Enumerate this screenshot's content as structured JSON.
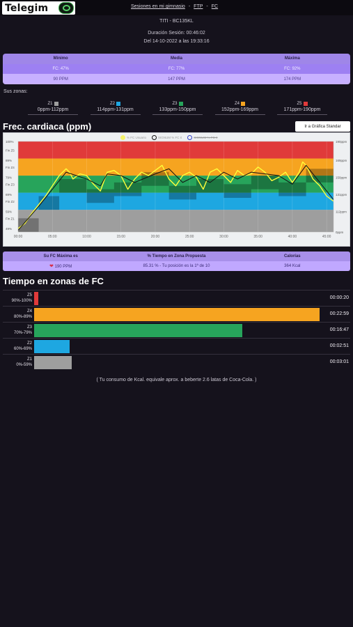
{
  "header": {
    "logo_text": "Telegim",
    "breadcrumb": [
      "Sesiones en mi gimnasio",
      "FTP",
      "FC"
    ],
    "separator": "-"
  },
  "session": {
    "user": "TITI - BC135KL",
    "duration": "Duración Sesión: 00:46:02",
    "date": "Del 14-10-2022 a las 19:33:16"
  },
  "stats": {
    "headers": [
      "Mínimo",
      "Media",
      "Máxima"
    ],
    "fc_pct": [
      "FC: 47%",
      "FC: 77%",
      "FC: 92%"
    ],
    "ppm": [
      "90 PPM",
      "147 PPM",
      "174 PPM"
    ]
  },
  "zones_label": "Sus zonas:",
  "zones": [
    {
      "name": "Z1",
      "range": "0ppm-112ppm",
      "color": "#9e9e9e"
    },
    {
      "name": "Z2",
      "range": "114ppm-131ppm",
      "color": "#1ea7e1"
    },
    {
      "name": "Z3",
      "range": "133ppm-150ppm",
      "color": "#27a45b"
    },
    {
      "name": "Z4",
      "range": "152ppm-169ppm",
      "color": "#f6a420"
    },
    {
      "name": "Z5",
      "range": "171ppm-190ppm",
      "color": "#e03a3a"
    }
  ],
  "chart_title": "Frec. cardiaca (ppm)",
  "standard_button": "Ir a Gráfica Standar",
  "chart_data": {
    "type": "line",
    "legend": [
      "% FC Usuario",
      "SIGNUM % FC ¢",
      "SIGNUM % FC ¢"
    ],
    "y_left_ticks": [
      "100%",
      "Fin Z5",
      "89%",
      "Fin Z4",
      "79%",
      "Fin Z3",
      "69%",
      "Fin Z2",
      "59%",
      "Fin Z1",
      "49%"
    ],
    "y_right_ticks": [
      "190ppm",
      "169ppm",
      "150ppm",
      "131ppm",
      "112ppm",
      "0ppm"
    ],
    "x_ticks": [
      "00:00",
      "05:00",
      "10:00",
      "15:00",
      "20:00",
      "25:00",
      "30:00",
      "35:00",
      "40:00",
      "45:00"
    ],
    "xlim": [
      0,
      46
    ],
    "ylim": [
      47,
      100
    ],
    "zone_bands": [
      {
        "zone": "Z1",
        "from": 47,
        "to": 60,
        "color": "#9e9e9e"
      },
      {
        "zone": "Z2",
        "from": 60,
        "to": 70,
        "color": "#1ea7e1"
      },
      {
        "zone": "Z3",
        "from": 70,
        "to": 80,
        "color": "#27a45b"
      },
      {
        "zone": "Z4",
        "from": 80,
        "to": 90,
        "color": "#f6a420"
      },
      {
        "zone": "Z5",
        "from": 90,
        "to": 100,
        "color": "#e03a3a"
      }
    ],
    "series": [
      {
        "name": "% FC Usuario",
        "color": "#ffff3a",
        "x": [
          0,
          1,
          2,
          3,
          4,
          5,
          6,
          7,
          7.5,
          8,
          9,
          10,
          11,
          12,
          13,
          14,
          15,
          16,
          17,
          18,
          19,
          20,
          21,
          22,
          23,
          24,
          25,
          26,
          27,
          28,
          29,
          30,
          31,
          32,
          33,
          34,
          35,
          36,
          37,
          38,
          39,
          40,
          41,
          41.5,
          42,
          43,
          44,
          45,
          46
        ],
        "y": [
          49,
          52,
          58,
          63,
          68,
          74,
          80,
          84,
          82,
          78,
          81,
          80,
          75,
          71,
          82,
          83,
          80,
          72,
          78,
          82,
          80,
          83,
          86,
          78,
          74,
          80,
          82,
          79,
          72,
          82,
          84,
          80,
          76,
          83,
          80,
          81,
          85,
          82,
          77,
          79,
          82,
          76,
          82,
          88,
          86,
          78,
          74,
          68,
          65
        ]
      },
      {
        "name": "SIGNUM % FC",
        "color": "#111111",
        "x": [
          0,
          3,
          7,
          10,
          12,
          13,
          15,
          17,
          20,
          22,
          24,
          26,
          28,
          30,
          32,
          34,
          36,
          38,
          40,
          42,
          44,
          46
        ],
        "y": [
          48,
          62,
          82,
          78,
          74,
          81,
          80,
          76,
          81,
          84,
          76,
          80,
          76,
          82,
          78,
          82,
          81,
          80,
          75,
          86,
          76,
          66
        ]
      }
    ]
  },
  "summary": {
    "headers": [
      "Su FC Máxima es",
      "% Tiempo en Zona Propuesta",
      "Calorías"
    ],
    "values": [
      "190 PPM",
      "85.31 % - Tu posición es la 1ª de 10",
      "364 Kcal"
    ]
  },
  "time_title": "Tiempo en zonas de FC",
  "time_zones": [
    {
      "zone": "Z5",
      "range": "90%-100%",
      "time": "00:00:20",
      "minutes": 0.33,
      "color": "#e03a3a"
    },
    {
      "zone": "Z4",
      "range": "80%-89%",
      "time": "00:22:59",
      "minutes": 22.98,
      "color": "#f6a420"
    },
    {
      "zone": "Z3",
      "range": "70%-79%",
      "time": "00:16:47",
      "minutes": 16.78,
      "color": "#27a45b"
    },
    {
      "zone": "Z2",
      "range": "60%-69%",
      "time": "00:02:51",
      "minutes": 2.85,
      "color": "#1ea7e1"
    },
    {
      "zone": "Z1",
      "range": "0%-59%",
      "time": "00:03:01",
      "minutes": 3.02,
      "color": "#9e9e9e"
    }
  ],
  "kcal_note": "( Tu consumo de Kcal. equivale aprox. a beberte 2.6 latas de Coca-Cola. )"
}
